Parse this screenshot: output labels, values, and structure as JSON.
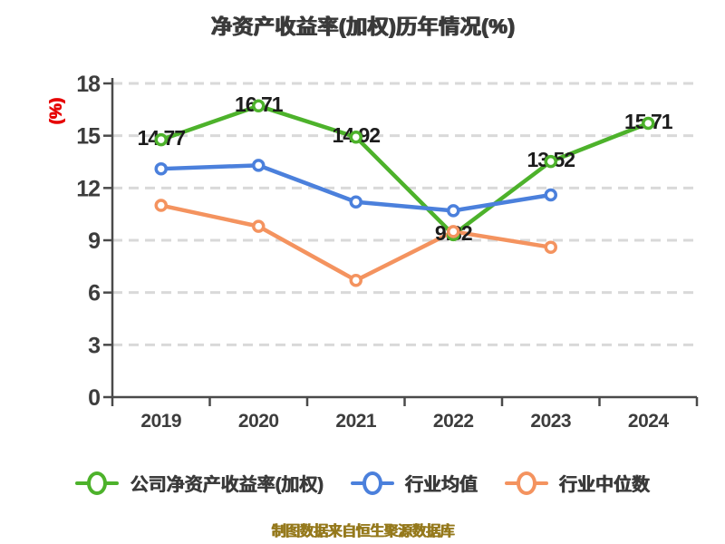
{
  "title": "净资产收益率(加权)历年情况(%)",
  "caption": "制图数据来自恒生聚源数据库",
  "colors": {
    "company_green": "#4db22b",
    "industry_mean_blue": "#4b80dc",
    "industry_median_orange": "#f4935f",
    "grid": "#d9d9d9",
    "axis": "#4a4a4a",
    "tick_text": "#3d3d3d",
    "value_label_text": "#1c1c1c",
    "ylabel_red": "#e60000",
    "caption_gold": "#95791c"
  },
  "chart_data": {
    "type": "line",
    "title": "净资产收益率(加权)历年情况(%)",
    "ylabel": "(%)",
    "xlabel": "",
    "categories": [
      "2019",
      "2020",
      "2021",
      "2022",
      "2023",
      "2024"
    ],
    "ylim": [
      0,
      18
    ],
    "yticks": [
      0,
      3,
      6,
      9,
      12,
      15,
      18
    ],
    "grid": "horizontal-dashed",
    "legend_position": "bottom",
    "series": [
      {
        "name": "公司净资产收益率(加权)",
        "color": "#4db22b",
        "values": [
          14.77,
          16.71,
          14.92,
          9.32,
          13.52,
          15.71
        ],
        "labels_shown": true
      },
      {
        "name": "行业均值",
        "color": "#4b80dc",
        "values": [
          13.1,
          13.3,
          11.2,
          10.7,
          11.6,
          null
        ],
        "labels_shown": false
      },
      {
        "name": "行业中位数",
        "color": "#f4935f",
        "values": [
          11.0,
          9.8,
          6.7,
          9.5,
          8.6,
          null
        ],
        "labels_shown": false
      }
    ]
  },
  "legend": {
    "items": [
      {
        "label": "公司净资产收益率(加权)"
      },
      {
        "label": "行业均值"
      },
      {
        "label": "行业中位数"
      }
    ]
  }
}
